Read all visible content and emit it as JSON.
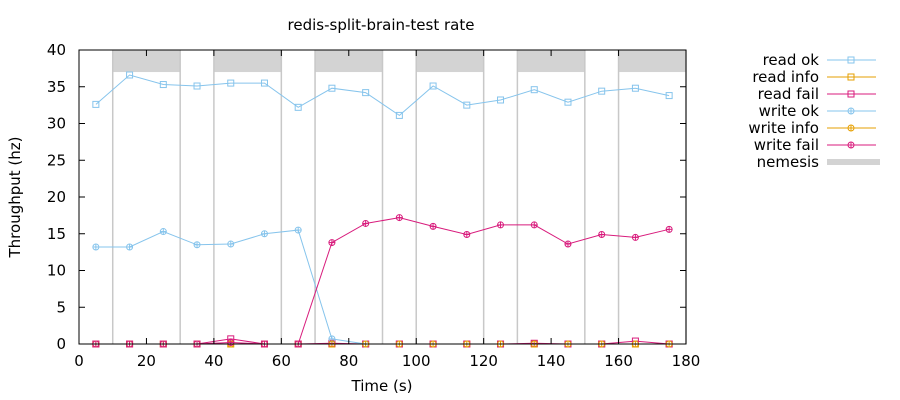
{
  "chart_data": {
    "type": "line",
    "title": "redis-split-brain-test rate",
    "xlabel": "Time (s)",
    "ylabel": "Throughput (hz)",
    "xlim": [
      0,
      180
    ],
    "ylim": [
      0,
      40
    ],
    "xticks": [
      0,
      20,
      40,
      60,
      80,
      100,
      120,
      140,
      160,
      180
    ],
    "yticks": [
      0,
      5,
      10,
      15,
      20,
      25,
      30,
      35,
      40
    ],
    "grid": false,
    "legend_position": "right",
    "series": [
      {
        "name": "read ok",
        "color": "#86c4ec",
        "marker": "square",
        "x": [
          5,
          15,
          25,
          35,
          45,
          55,
          65,
          75,
          85,
          95,
          105,
          115,
          125,
          135,
          145,
          155,
          165,
          175
        ],
        "y": [
          32.6,
          36.6,
          35.3,
          35.1,
          35.5,
          35.5,
          32.2,
          34.8,
          34.2,
          31.1,
          35.1,
          32.5,
          33.2,
          34.6,
          32.9,
          34.4,
          34.8,
          33.8
        ]
      },
      {
        "name": "read info",
        "color": "#e69f00",
        "marker": "square",
        "x": [
          5,
          15,
          25,
          35,
          45,
          55,
          65,
          75,
          85,
          95,
          105,
          115,
          125,
          135,
          145,
          155,
          165,
          175
        ],
        "y": [
          0,
          0,
          0,
          0,
          0,
          0,
          0,
          0,
          0,
          0,
          0,
          0,
          0,
          0,
          0,
          0,
          0,
          0
        ]
      },
      {
        "name": "read fail",
        "color": "#d81b7c",
        "marker": "square",
        "x": [
          5,
          15,
          25,
          35,
          45,
          55,
          65,
          75,
          85,
          95,
          105,
          115,
          125,
          135,
          145,
          155,
          165,
          175
        ],
        "y": [
          0,
          0,
          0,
          0,
          0.7,
          0,
          0,
          0.1,
          0,
          0,
          0,
          0,
          0,
          0.1,
          0,
          0,
          0.4,
          0
        ]
      },
      {
        "name": "write ok",
        "color": "#86c4ec",
        "marker": "circle",
        "x": [
          5,
          15,
          25,
          35,
          45,
          55,
          65,
          75,
          85
        ],
        "y": [
          13.2,
          13.2,
          15.3,
          13.5,
          13.6,
          15.0,
          15.5,
          0.7,
          0
        ]
      },
      {
        "name": "write info",
        "color": "#e69f00",
        "marker": "circle",
        "x": [
          5,
          15,
          25,
          35,
          45,
          55,
          65,
          75,
          85,
          95,
          105,
          115,
          125,
          135,
          145,
          155,
          165,
          175
        ],
        "y": [
          0,
          0,
          0,
          0,
          0,
          0,
          0,
          0,
          0,
          0,
          0,
          0,
          0,
          0,
          0,
          0,
          0,
          0
        ]
      },
      {
        "name": "write fail",
        "color": "#d81b7c",
        "marker": "circle",
        "x": [
          5,
          15,
          25,
          35,
          45,
          55,
          65,
          75,
          85,
          95,
          105,
          115,
          125,
          135,
          145,
          155,
          165,
          175
        ],
        "y": [
          0,
          0,
          0,
          0,
          0.2,
          0,
          0,
          13.8,
          16.4,
          17.2,
          16.0,
          14.9,
          16.2,
          16.2,
          13.6,
          14.9,
          14.5,
          15.6
        ]
      }
    ],
    "nemesis": {
      "name": "nemesis",
      "color": "#d3d3d3",
      "intervals": [
        [
          10,
          30
        ],
        [
          40,
          60
        ],
        [
          70,
          90
        ],
        [
          100,
          120
        ],
        [
          130,
          150
        ],
        [
          160,
          180
        ]
      ],
      "band_y": [
        37,
        40
      ]
    }
  }
}
